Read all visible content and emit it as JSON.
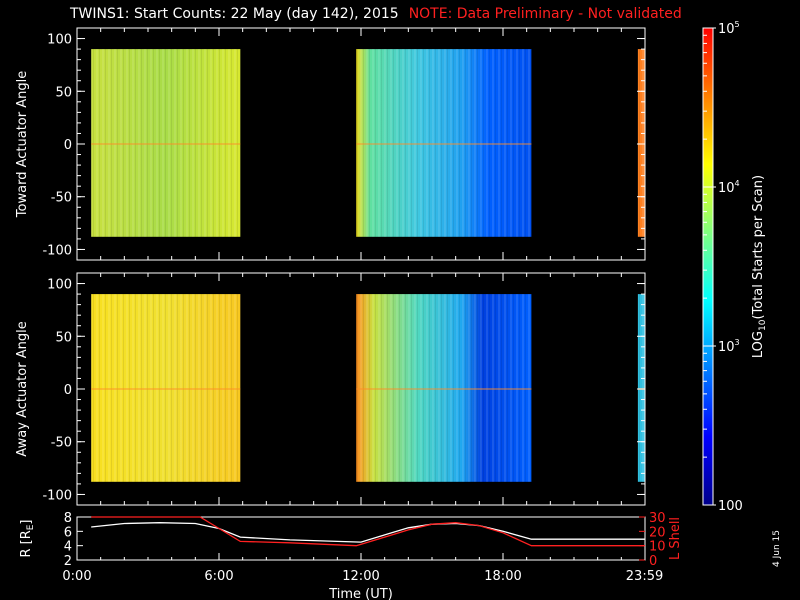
{
  "title": {
    "main": "TWINS1: Start Counts: 22 May (day 142), 2015",
    "note": "NOTE: Data Preliminary - Not validated"
  },
  "stamp": "4 Jun 15",
  "chart_data": [
    {
      "type": "heatmap",
      "ylabel": "Toward Actuator Angle",
      "ylim": [
        -110,
        110
      ],
      "yticks": [
        -100,
        -50,
        0,
        50,
        100
      ],
      "data_blocks": [
        {
          "t_start_hr": 0.6,
          "t_end_hr": 6.9,
          "angle_range": [
            -88,
            90
          ],
          "level": "green-yellow"
        },
        {
          "t_start_hr": 11.8,
          "t_end_hr": 19.2,
          "angle_range": [
            -88,
            90
          ],
          "level": "yellow-to-blue"
        },
        {
          "t_start_hr": 23.7,
          "t_end_hr": 23.98,
          "angle_range": [
            -88,
            90
          ],
          "level": "orange"
        }
      ]
    },
    {
      "type": "heatmap",
      "ylabel": "Away Actuator Angle",
      "ylim": [
        -110,
        110
      ],
      "yticks": [
        -100,
        -50,
        0,
        50,
        100
      ],
      "data_blocks": [
        {
          "t_start_hr": 0.6,
          "t_end_hr": 6.9,
          "angle_range": [
            -88,
            90
          ],
          "level": "yellow"
        },
        {
          "t_start_hr": 11.8,
          "t_end_hr": 19.2,
          "angle_range": [
            -88,
            90
          ],
          "level": "orange-to-blue"
        },
        {
          "t_start_hr": 23.7,
          "t_end_hr": 23.98,
          "angle_range": [
            -88,
            90
          ],
          "level": "mixed"
        }
      ]
    },
    {
      "type": "line",
      "xlabel": "Time (UT)",
      "xticks": [
        "0:00",
        "6:00",
        "12:00",
        "18:00",
        "23:59"
      ],
      "xtick_hours": [
        0,
        6,
        12,
        18,
        23.98
      ],
      "ylabel_left": "R [R",
      "ylabel_left_sub": "E",
      "ylabel_left_close": "]",
      "ylabel_right": "L Shell",
      "ylim_left": [
        2,
        8
      ],
      "yticks_left": [
        2,
        4,
        6,
        8
      ],
      "ylim_right": [
        0,
        30
      ],
      "yticks_right": [
        0,
        10,
        20,
        30
      ],
      "series": [
        {
          "axis": "left",
          "color": "#ffffff",
          "x": [
            0.6,
            2,
            3.5,
            5,
            6,
            6.9,
            9,
            11,
            12,
            13,
            14,
            15,
            16,
            17,
            18,
            19.2,
            21,
            23.98
          ],
          "y": [
            6.6,
            7.1,
            7.2,
            7.1,
            6.4,
            5.2,
            4.8,
            4.6,
            4.5,
            5.5,
            6.5,
            7.0,
            7.1,
            6.8,
            6.0,
            4.9,
            4.9,
            4.9
          ]
        },
        {
          "axis": "right",
          "color": "#ff2020",
          "x": [
            0.6,
            5.2,
            6.9,
            9,
            11.8,
            13,
            14,
            15,
            16,
            17,
            18,
            19.2,
            21,
            23.98
          ],
          "y": [
            34,
            34,
            13,
            12,
            10,
            16,
            21,
            25,
            26,
            24,
            19,
            10,
            10,
            10
          ]
        }
      ]
    }
  ],
  "colorbar": {
    "label": "LOG",
    "label_sub": "10",
    "label_rest": "(Total Starts per Scan)",
    "tick_labels": [
      {
        "label": "10",
        "sup": "5"
      },
      {
        "label": "10",
        "sup": "4"
      },
      {
        "label": "10",
        "sup": "3"
      },
      {
        "label": "100",
        "sup": ""
      }
    ],
    "scale": "log",
    "range": [
      100,
      100000
    ],
    "colors": [
      "#00008b",
      "#0000ff",
      "#0080ff",
      "#00ffff",
      "#80ff80",
      "#ffff00",
      "#ff8000",
      "#ff0000"
    ]
  }
}
